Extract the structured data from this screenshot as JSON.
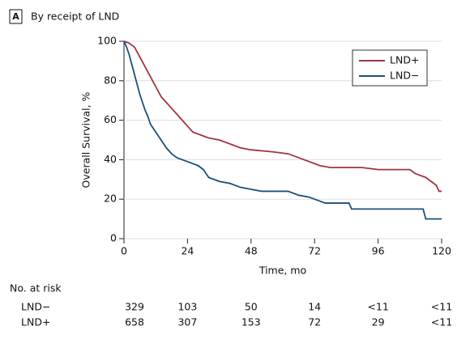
{
  "chart_data": {
    "type": "line",
    "panel": "A",
    "title": "By receipt of LND",
    "x_label": "Time, mo",
    "y_label": "Overall Survival, %",
    "xlim": [
      0,
      120
    ],
    "xticks": [
      0,
      24,
      48,
      72,
      96,
      120
    ],
    "ylim": [
      0,
      100
    ],
    "yticks": [
      0,
      20,
      40,
      60,
      80,
      100
    ],
    "legend": "upper right",
    "series": [
      {
        "name": "LND+",
        "color": "#a3343f",
        "x": [
          0,
          2,
          4,
          6,
          8,
          10,
          12,
          14,
          16,
          18,
          20,
          22,
          24,
          26,
          28,
          30,
          32,
          36,
          40,
          44,
          48,
          56,
          62,
          66,
          70,
          72,
          74,
          78,
          90,
          96,
          108,
          110,
          114,
          116,
          118,
          119,
          120
        ],
        "values": [
          100,
          99,
          97,
          92,
          87,
          82,
          77,
          72,
          69,
          66,
          63,
          60,
          57,
          54,
          53,
          52,
          51,
          50,
          48,
          46,
          45,
          44,
          43,
          41,
          39,
          38,
          37,
          36,
          36,
          35,
          35,
          33,
          31,
          29,
          27,
          24,
          24
        ]
      },
      {
        "name": "LND−",
        "color": "#1c4f7c",
        "x": [
          0,
          1,
          2,
          3,
          4,
          5,
          6,
          7,
          8,
          9,
          10,
          12,
          14,
          16,
          18,
          20,
          24,
          28,
          30,
          32,
          36,
          40,
          44,
          48,
          52,
          62,
          66,
          70,
          72,
          76,
          85,
          86,
          113,
          114,
          120
        ],
        "values": [
          100,
          97,
          93,
          88,
          83,
          78,
          73,
          69,
          65,
          62,
          58,
          54,
          50,
          46,
          43,
          41,
          39,
          37,
          35,
          31,
          29,
          28,
          26,
          25,
          24,
          24,
          22,
          21,
          20,
          18,
          18,
          15,
          15,
          10,
          10
        ]
      }
    ],
    "at_risk": {
      "title": "No. at risk",
      "rows": [
        {
          "label": "LND−",
          "values": [
            329,
            103,
            50,
            14,
            "<11",
            "<11"
          ]
        },
        {
          "label": "LND+",
          "values": [
            658,
            307,
            153,
            72,
            29,
            "<11"
          ]
        }
      ]
    }
  }
}
